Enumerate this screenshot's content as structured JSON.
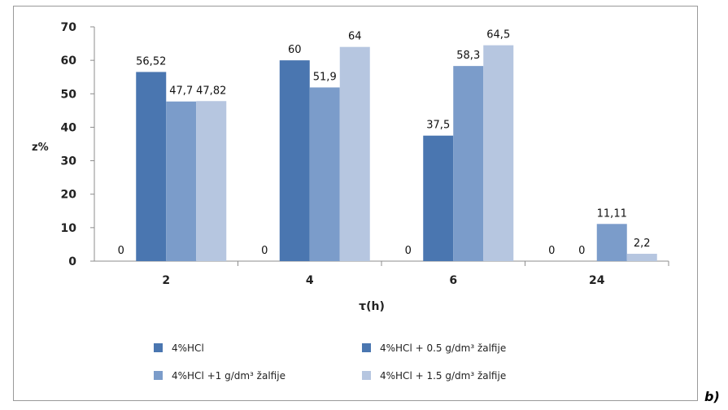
{
  "chart_data": {
    "type": "bar",
    "categories": [
      "2",
      "4",
      "6",
      "24"
    ],
    "series": [
      {
        "name": "4%HCl",
        "color": "#4a76b0",
        "values": [
          0,
          0,
          0,
          0
        ]
      },
      {
        "name": "4%HCl + 0.5 g/dm³ žalfije",
        "color": "#4a76b0",
        "values": [
          56.52,
          60,
          37.5,
          0
        ]
      },
      {
        "name": "4%HCl +1 g/dm³ žalfije",
        "color": "#7b9cca",
        "values": [
          47.7,
          51.9,
          58.3,
          11.11
        ]
      },
      {
        "name": "4%HCl + 1.5 g/dm³ žalfije",
        "color": "#b6c6e0",
        "values": [
          47.82,
          64,
          64.5,
          2.2
        ]
      }
    ],
    "data_labels": [
      [
        "0",
        "56,52",
        "47,7",
        "47,82"
      ],
      [
        "0",
        "60",
        "51,9",
        "64"
      ],
      [
        "0",
        "37,5",
        "58,3",
        "64,5"
      ],
      [
        "0",
        "0",
        "11,11",
        "2,2"
      ]
    ],
    "xlabel": "τ(h)",
    "ylabel": "z%",
    "ylim": [
      0,
      70
    ],
    "yticks": [
      0,
      10,
      20,
      30,
      40,
      50,
      60,
      70
    ],
    "grid": false,
    "legend_position": "bottom"
  },
  "corner_label": "b)"
}
